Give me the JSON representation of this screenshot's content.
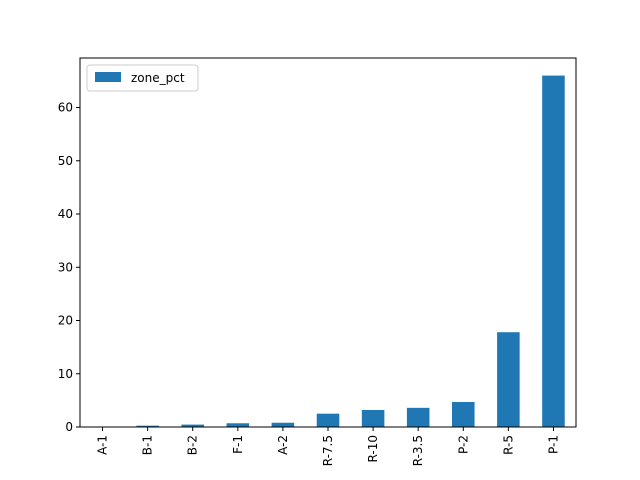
{
  "chart_data": {
    "type": "bar",
    "categories": [
      "A-1",
      "B-1",
      "B-2",
      "F-1",
      "A-2",
      "R-7.5",
      "R-10",
      "R-3.5",
      "P-2",
      "R-5",
      "P-1"
    ],
    "series": [
      {
        "name": "zone_pct",
        "color": "#1f77b4",
        "values": [
          0.05,
          0.25,
          0.45,
          0.7,
          0.8,
          2.5,
          3.2,
          3.6,
          4.7,
          17.8,
          66.0
        ]
      }
    ],
    "title": "",
    "xlabel": "",
    "ylabel": "",
    "ylim": [
      0,
      69.3
    ],
    "yticks": [
      0,
      10,
      20,
      30,
      40,
      50,
      60
    ],
    "legend_position": "upper-left",
    "grid": false
  }
}
